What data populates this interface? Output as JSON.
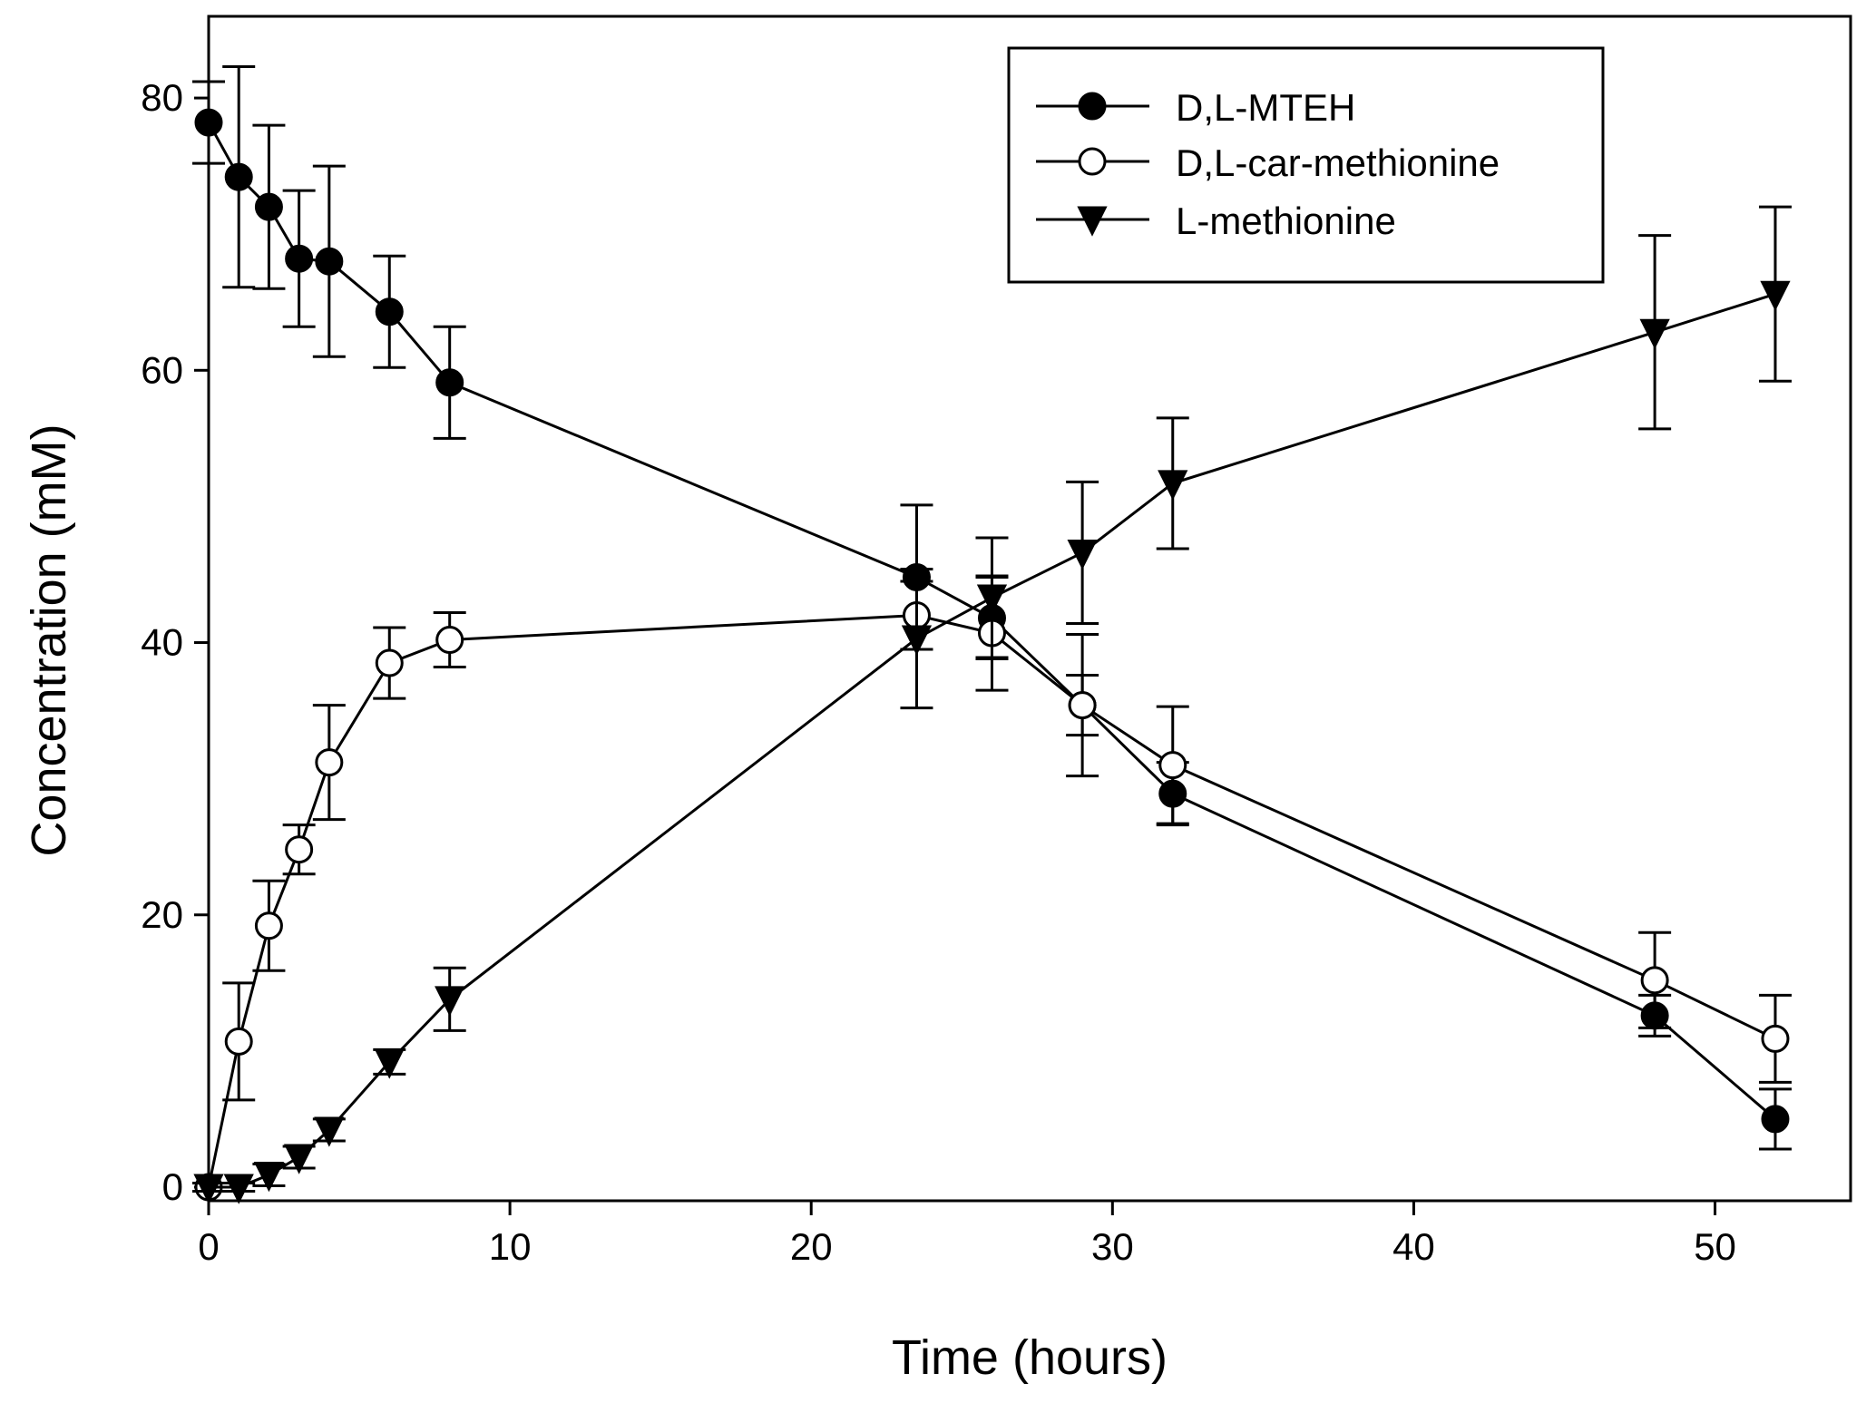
{
  "chart_data": {
    "type": "line",
    "title": "",
    "xlabel": "Time (hours)",
    "ylabel": "Concentration (mM)",
    "xlim": [
      0,
      54.5
    ],
    "ylim": [
      -1,
      86
    ],
    "x_ticks": [
      0,
      10,
      20,
      30,
      40,
      50
    ],
    "y_ticks": [
      0,
      20,
      40,
      60,
      80
    ],
    "x_tick_labels": [
      "0",
      "10",
      "20",
      "30",
      "40",
      "50"
    ],
    "y_tick_labels": [
      "0",
      "20",
      "40",
      "60",
      "80"
    ],
    "grid": false,
    "legend_position": "top-right",
    "series": [
      {
        "name": "D,L-MTEH",
        "marker": "filled-circle",
        "x": [
          0,
          1,
          2,
          3,
          4,
          6,
          8,
          23.5,
          26,
          29,
          32,
          48,
          52
        ],
        "y": [
          78.2,
          74.2,
          72.0,
          68.2,
          68.0,
          64.3,
          59.1,
          44.8,
          41.8,
          35.4,
          28.9,
          12.6,
          5.0
        ],
        "err": [
          3.0,
          8.1,
          6.0,
          5.0,
          7.0,
          4.1,
          4.1,
          5.3,
          3.0,
          2.2,
          2.3,
          1.5,
          2.2
        ]
      },
      {
        "name": "D,L-car-methionine",
        "marker": "open-circle",
        "x": [
          0,
          1,
          2,
          3,
          4,
          6,
          8,
          23.5,
          26,
          29,
          32,
          48,
          52
        ],
        "y": [
          0,
          10.7,
          19.2,
          24.8,
          31.2,
          38.5,
          40.2,
          42.0,
          40.7,
          35.4,
          31.0,
          15.2,
          10.9
        ],
        "err": [
          0.3,
          4.3,
          3.3,
          1.8,
          4.2,
          2.6,
          2.0,
          2.5,
          4.2,
          5.2,
          4.3,
          3.5,
          3.2
        ]
      },
      {
        "name": "L-methionine",
        "marker": "filled-triangle-down",
        "x": [
          0,
          1,
          2,
          3,
          4,
          6,
          8,
          23.5,
          26,
          29,
          32,
          48,
          52
        ],
        "y": [
          0,
          0,
          0.9,
          2.2,
          4.2,
          9.2,
          13.8,
          40.3,
          43.3,
          46.6,
          51.7,
          62.8,
          65.6
        ],
        "err": [
          0.3,
          0.3,
          0.8,
          0.8,
          0.8,
          0.9,
          2.3,
          5.1,
          4.4,
          5.2,
          4.8,
          7.1,
          6.4
        ]
      }
    ]
  }
}
